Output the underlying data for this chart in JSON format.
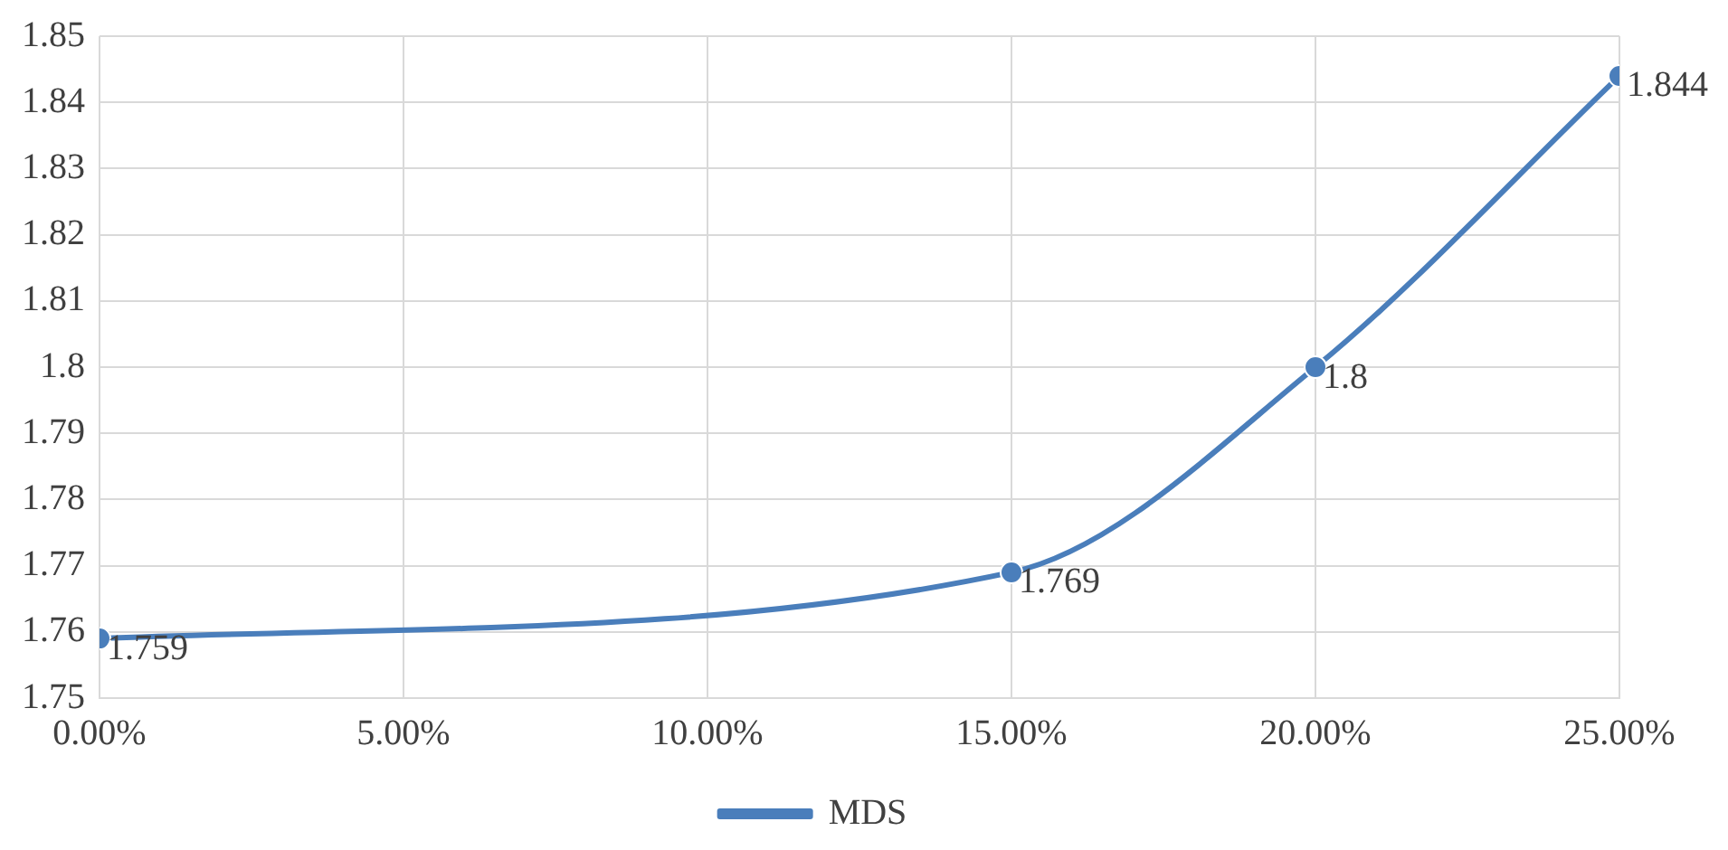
{
  "chart_data": {
    "type": "line",
    "x": [
      0,
      15,
      20,
      25
    ],
    "series": [
      {
        "name": "MDS",
        "color": "#4a7ebb",
        "values": [
          1.759,
          1.769,
          1.8,
          1.844
        ]
      }
    ],
    "xlim": [
      0,
      25
    ],
    "xticks": [
      {
        "value": 0,
        "label": "0.00%"
      },
      {
        "value": 5,
        "label": "5.00%"
      },
      {
        "value": 10,
        "label": "10.00%"
      },
      {
        "value": 15,
        "label": "15.00%"
      },
      {
        "value": 20,
        "label": "20.00%"
      },
      {
        "value": 25,
        "label": "25.00%"
      }
    ],
    "ylim": [
      1.75,
      1.85
    ],
    "yticks": [
      1.75,
      1.76,
      1.77,
      1.78,
      1.79,
      1.8,
      1.81,
      1.82,
      1.83,
      1.84,
      1.85
    ],
    "grid": true,
    "legend": "bottom",
    "marker": "circle",
    "line_style": "solid",
    "data_labels": true
  }
}
